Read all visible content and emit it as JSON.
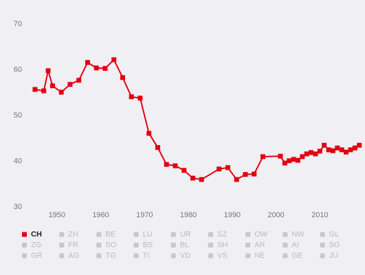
{
  "chart_data": {
    "type": "line",
    "x": [
      1945,
      1947,
      1948,
      1949,
      1951,
      1953,
      1955,
      1957,
      1959,
      1961,
      1963,
      1965,
      1967,
      1969,
      1971,
      1973,
      1975,
      1977,
      1979,
      1981,
      1983,
      1987,
      1989,
      1991,
      1993,
      1995,
      1997,
      2001,
      2002,
      2003,
      2004,
      2005,
      2006,
      2007,
      2008,
      2009,
      2010,
      2011,
      2012,
      2013,
      2014,
      2015,
      2016,
      2017,
      2018,
      2019
    ],
    "series": [
      {
        "name": "CH",
        "color": "#e3000f",
        "values": [
          55.7,
          55.4,
          59.8,
          56.5,
          55.1,
          56.8,
          57.7,
          61.6,
          60.4,
          60.3,
          62.2,
          58.3,
          54.1,
          53.8,
          46.1,
          43.0,
          39.3,
          39.0,
          38.0,
          36.3,
          36.0,
          38.3,
          38.6,
          36.0,
          37.1,
          37.2,
          41.0,
          41.1,
          39.6,
          40.1,
          40.4,
          40.2,
          41.0,
          41.6,
          41.9,
          41.6,
          42.2,
          43.5,
          42.5,
          42.3,
          42.9,
          42.5,
          42.0,
          42.5,
          42.9,
          43.5
        ]
      }
    ],
    "inactive_series": [
      "ZH",
      "BE",
      "LU",
      "UR",
      "SZ",
      "OW",
      "NW",
      "GL",
      "ZG",
      "FR",
      "SO",
      "BS",
      "BL",
      "SH",
      "AR",
      "AI",
      "SG",
      "GR",
      "AG",
      "TG",
      "TI",
      "VD",
      "VS",
      "NE",
      "GE",
      "JU"
    ],
    "inactive_color": "#c8c8cc",
    "xlim": [
      1942.5,
      2020.3
    ],
    "xticks": [
      1950,
      1960,
      1970,
      1980,
      1990,
      2000,
      2010
    ],
    "ylim": [
      30,
      70
    ],
    "yticks": [
      30,
      40,
      50,
      60,
      70
    ],
    "grid": false
  }
}
